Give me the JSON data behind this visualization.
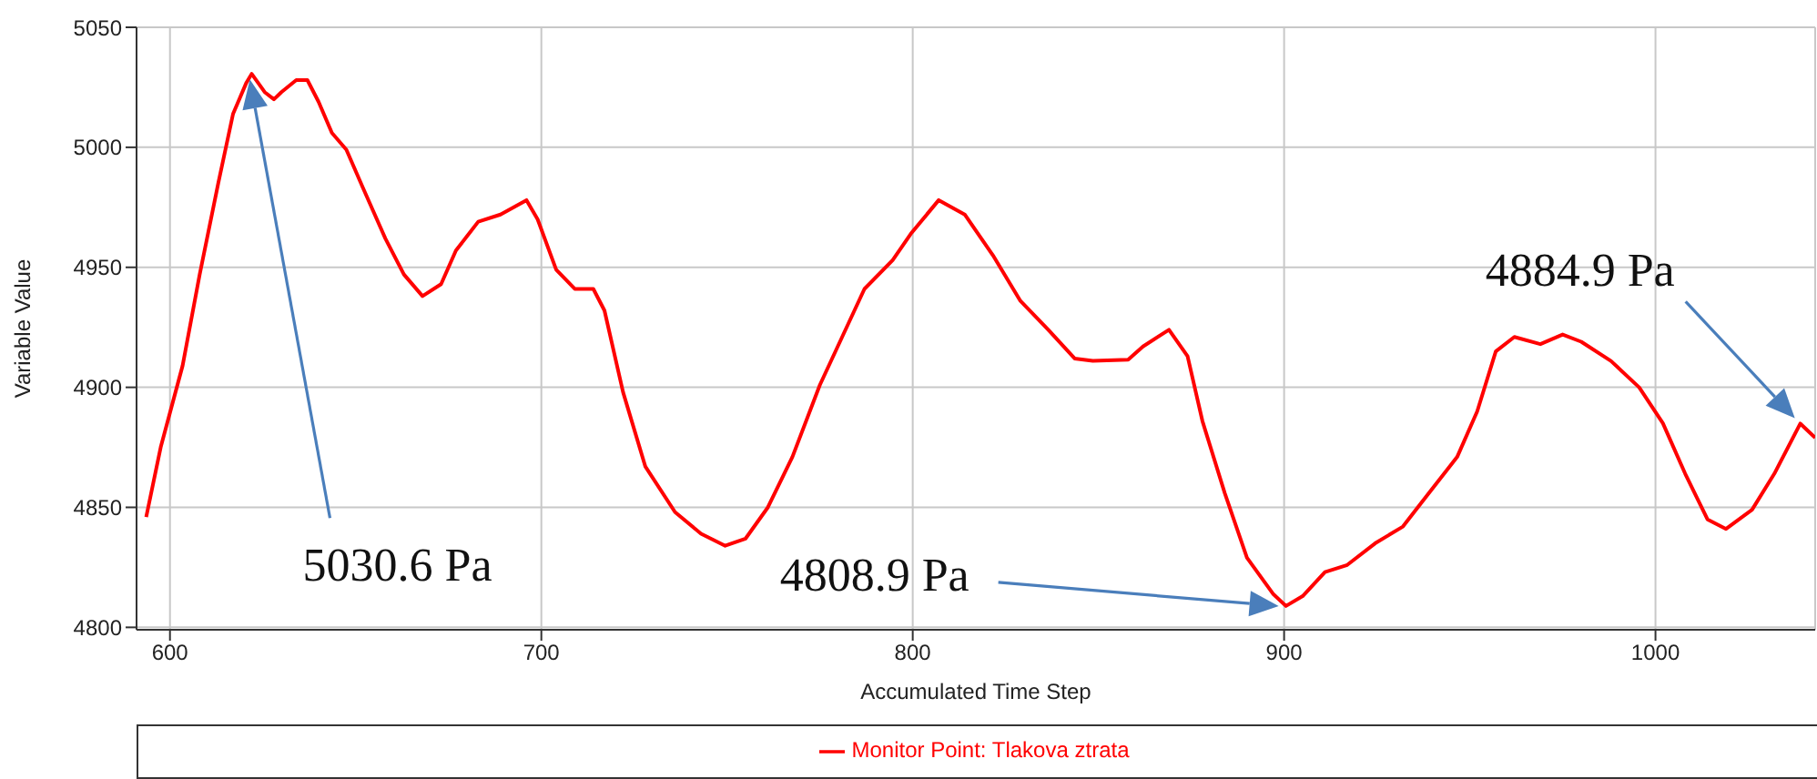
{
  "chart_data": {
    "type": "line",
    "xlabel": "Accumulated Time Step",
    "ylabel": "Variable Value",
    "xlim": [
      591,
      1043
    ],
    "xticks": [
      600,
      700,
      800,
      900,
      1000
    ],
    "ylim": [
      4799,
      5050
    ],
    "yticks": [
      4800,
      4850,
      4900,
      4950,
      5000,
      5050
    ],
    "grid": true,
    "legend": "bottom",
    "marker": "none",
    "line_style": "solid",
    "series": [
      {
        "name": "Monitor Point: Tlakova ztrata",
        "color": "#ff0000",
        "x": [
          593.6,
          597.5,
          603.4,
          608,
          613,
          617,
          620.6,
          622,
          625.5,
          628,
          630,
          634,
          637,
          640,
          643.6,
          647.5,
          652,
          658,
          663,
          668,
          673,
          677,
          683,
          689,
          696,
          699,
          704,
          709,
          714,
          717,
          722,
          728,
          736,
          743,
          749.5,
          755,
          761,
          767.6,
          775,
          781,
          787,
          794.6,
          799.5,
          807,
          814,
          821.6,
          829,
          836.5,
          843.6,
          848.5,
          858,
          862,
          869,
          874,
          878,
          884,
          890,
          897,
          900.5,
          905,
          911,
          917,
          924.5,
          932,
          939,
          946.6,
          952,
          957,
          962,
          969,
          975,
          980,
          988,
          995.6,
          1002,
          1008,
          1014,
          1019,
          1026,
          1032,
          1039,
          1043
        ],
        "values": [
          4846,
          4875,
          4909,
          4947,
          4985,
          5014,
          5027,
          5030.6,
          5023,
          5020,
          5023,
          5028,
          5028,
          5019,
          5006,
          4999,
          4983,
          4962,
          4947,
          4938,
          4943,
          4957,
          4969,
          4972,
          4978,
          4970,
          4949,
          4941,
          4941,
          4932,
          4898,
          4867,
          4848,
          4839,
          4834,
          4837,
          4850,
          4871,
          4901,
          4921,
          4941,
          4953,
          4964,
          4978,
          4972,
          4955,
          4936,
          4924,
          4912,
          4911,
          4911.5,
          4917,
          4924,
          4913,
          4886,
          4856,
          4829,
          4814,
          4808.9,
          4813,
          4823,
          4826,
          4835,
          4842,
          4856,
          4871,
          4890,
          4915,
          4921,
          4918,
          4922,
          4919,
          4911,
          4900,
          4885,
          4864,
          4845,
          4841,
          4849,
          4864,
          4884.9,
          4879
        ]
      }
    ],
    "annotations": [
      "5030.6 Pa",
      "4808.9 Pa",
      "4884.9 Pa"
    ]
  }
}
